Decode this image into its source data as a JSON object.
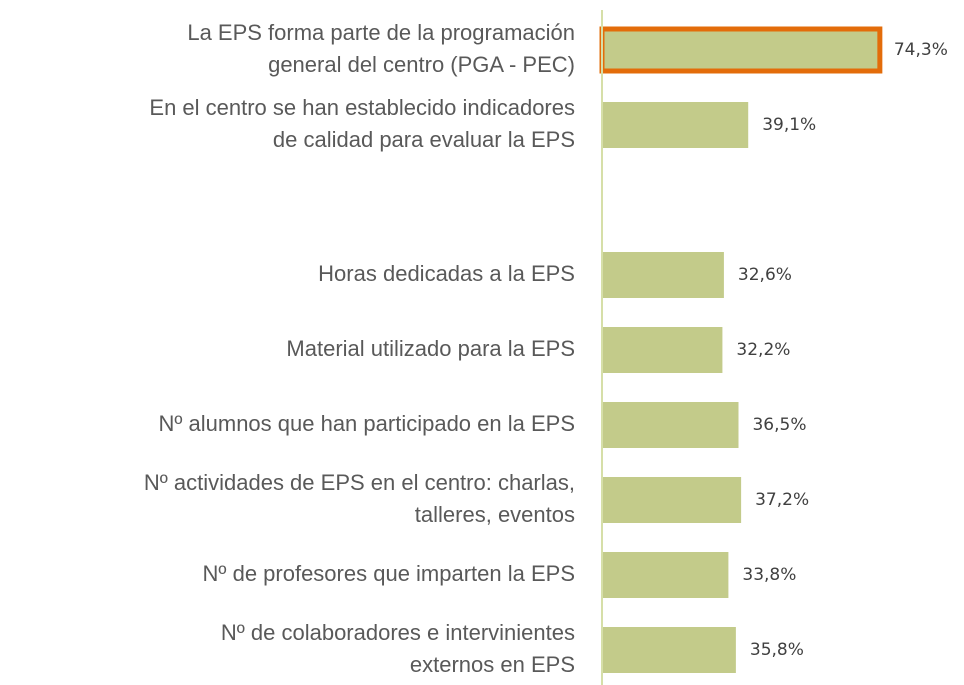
{
  "chart_data": {
    "type": "barh",
    "categories": [
      [
        "La EPS forma parte de la programación",
        "general del centro (PGA - PEC)"
      ],
      [
        "En el centro se han establecido indicadores",
        "de calidad para evaluar la EPS"
      ],
      null,
      [
        "Horas dedicadas a la EPS"
      ],
      [
        "Material utilizado para la EPS"
      ],
      [
        "Nº alumnos que han participado en la EPS"
      ],
      [
        "Nº actividades de EPS en el centro: charlas,",
        "talleres, eventos"
      ],
      [
        "Nº de profesores que imparten la EPS"
      ],
      [
        "Nº de colaboradores e intervinientes",
        "externos en EPS"
      ]
    ],
    "values": [
      74.3,
      39.1,
      null,
      32.6,
      32.2,
      36.5,
      37.2,
      33.8,
      35.8
    ],
    "value_labels": [
      "74,3%",
      "39,1%",
      null,
      "32,6%",
      "32,2%",
      "36,5%",
      "37,2%",
      "33,8%",
      "35,8%"
    ],
    "color": "#c3cb8a",
    "highlight": {
      "index": 0,
      "color": "#e36c0a"
    },
    "xlim": [
      0,
      96
    ]
  }
}
